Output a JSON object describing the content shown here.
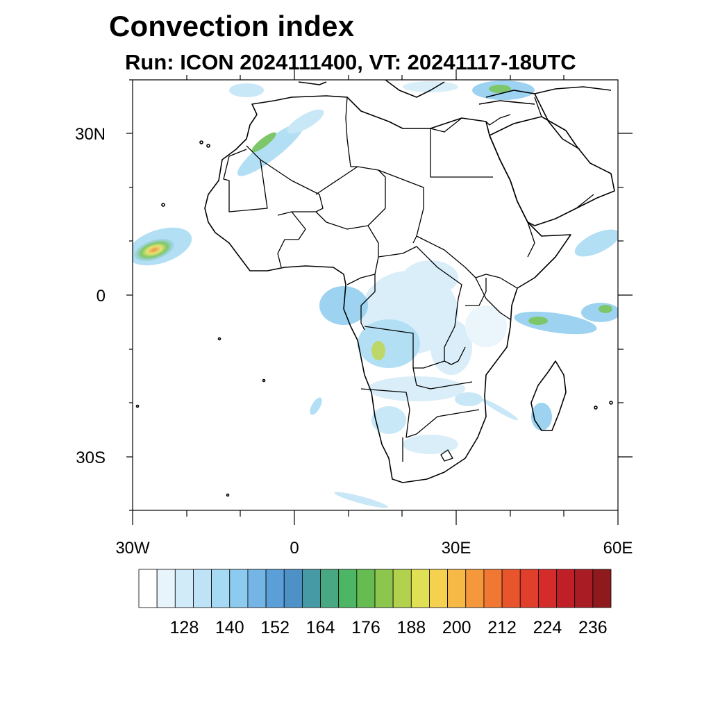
{
  "title": "Convection index",
  "subtitle": "Run: ICON 2024111400,  VT: 20241117-18UTC",
  "map": {
    "lat_labels": [
      "30N",
      "0",
      "30S"
    ],
    "lon_labels": [
      "30W",
      "0",
      "30E",
      "60E"
    ],
    "lon_range": [
      -30,
      60
    ],
    "lat_range": [
      -40,
      40
    ]
  },
  "colorbar": {
    "labels": [
      "128",
      "140",
      "152",
      "164",
      "176",
      "188",
      "200",
      "212",
      "224",
      "236"
    ],
    "colors": [
      "#ffffff",
      "#e8f4fc",
      "#d2ebf8",
      "#bfe3f6",
      "#a6daf4",
      "#8ccbef",
      "#74b5e6",
      "#5a9fd8",
      "#4d91c7",
      "#469aa6",
      "#48a884",
      "#4db665",
      "#66bc50",
      "#8cc64c",
      "#b2d14d",
      "#e0e055",
      "#f6d150",
      "#f7b945",
      "#f5983c",
      "#f07833",
      "#e8552d",
      "#e03f2c",
      "#d42b2b",
      "#c11f28",
      "#a91c23",
      "#8f1a1d"
    ]
  }
}
